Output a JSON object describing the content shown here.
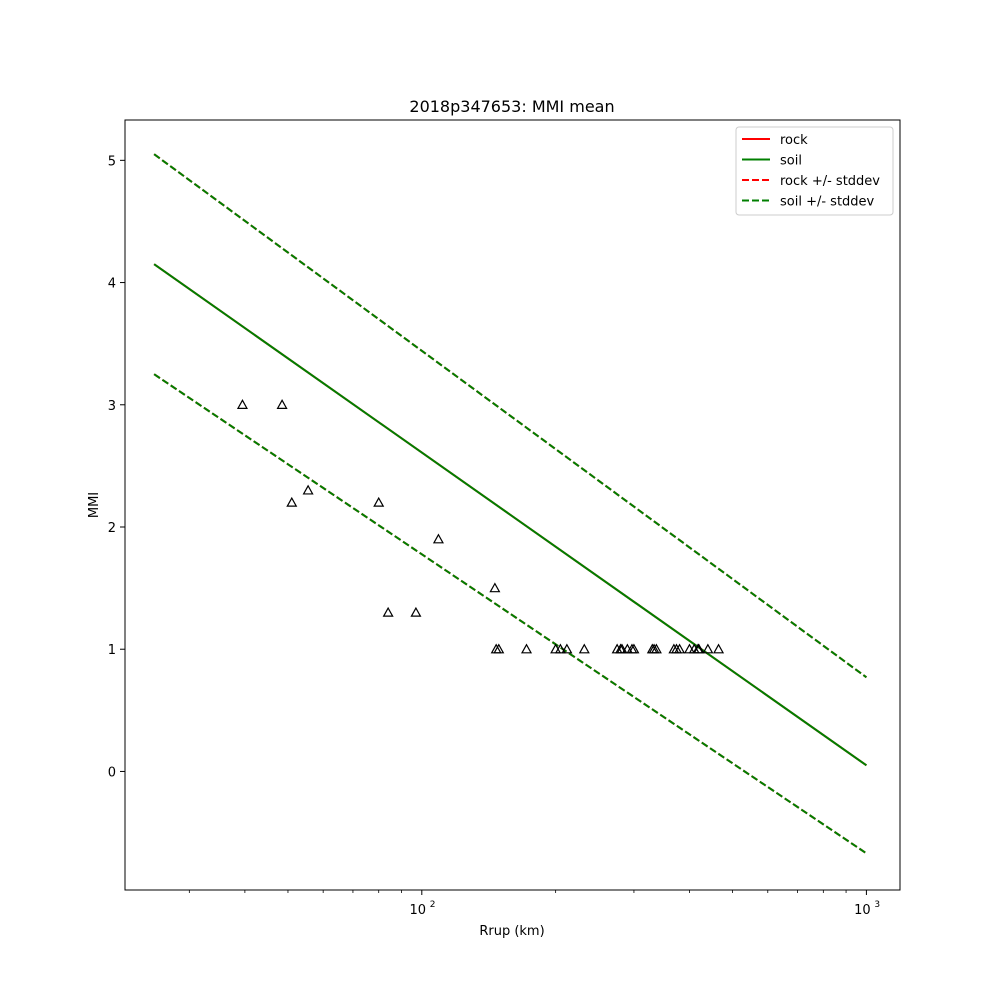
{
  "chart_data": {
    "type": "scatter",
    "title": "2018p347653: MMI mean",
    "xlabel": "Rrup (km)",
    "ylabel": "MMI",
    "xscale": "log",
    "xlim": [
      21.5,
      1190
    ],
    "ylim": [
      -0.97,
      5.33
    ],
    "x_ticks": [
      100,
      1000
    ],
    "x_tick_labels": [
      "10",
      "10"
    ],
    "x_tick_exponents": [
      "2",
      "3"
    ],
    "y_ticks": [
      0,
      1,
      2,
      3,
      4,
      5
    ],
    "y_tick_labels": [
      "0",
      "1",
      "2",
      "3",
      "4",
      "5"
    ],
    "grid": false,
    "legend_position": "top-right",
    "lines": [
      {
        "name": "rock",
        "style": "solid",
        "color": "#ff0000",
        "x": [
          25,
          1000
        ],
        "y": [
          4.15,
          0.05
        ]
      },
      {
        "name": "soil",
        "style": "solid",
        "color": "#007f00",
        "x": [
          25,
          1000
        ],
        "y": [
          4.15,
          0.05
        ]
      },
      {
        "name": "rock +/- stddev",
        "style": "dashed",
        "color": "#ff0000",
        "x": [
          25,
          1000
        ],
        "y": [
          5.05,
          0.77
        ]
      },
      {
        "style": "dashed",
        "color": "#ff0000",
        "x": [
          25,
          1000
        ],
        "y": [
          3.25,
          -0.67
        ]
      },
      {
        "name": "soil +/- stddev",
        "style": "dashed",
        "color": "#007f00",
        "x": [
          25,
          1000
        ],
        "y": [
          5.05,
          0.77
        ]
      },
      {
        "style": "dashed",
        "color": "#007f00",
        "x": [
          25,
          1000
        ],
        "y": [
          3.25,
          -0.67
        ]
      }
    ],
    "observations": {
      "marker": "triangle",
      "color": "#000000",
      "x": [
        39.5,
        48.5,
        51,
        55.5,
        80,
        84,
        97,
        109,
        146,
        147,
        149,
        172,
        200,
        205,
        212,
        232,
        275,
        280,
        282,
        290,
        297,
        300,
        330,
        333,
        337,
        369,
        374,
        380,
        400,
        410,
        418,
        420,
        440,
        465
      ],
      "y": [
        3.0,
        3.0,
        2.2,
        2.3,
        2.2,
        1.3,
        1.3,
        1.9,
        1.5,
        1.0,
        1.0,
        1.0,
        1.0,
        1.0,
        1.0,
        1.0,
        1.0,
        1.0,
        1.0,
        1.0,
        1.0,
        1.0,
        1.0,
        1.0,
        1.0,
        1.0,
        1.0,
        1.0,
        1.0,
        1.0,
        1.0,
        1.0,
        1.0,
        1.0
      ]
    },
    "legend": [
      "rock",
      "soil",
      "rock +/- stddev",
      "soil +/- stddev"
    ]
  }
}
